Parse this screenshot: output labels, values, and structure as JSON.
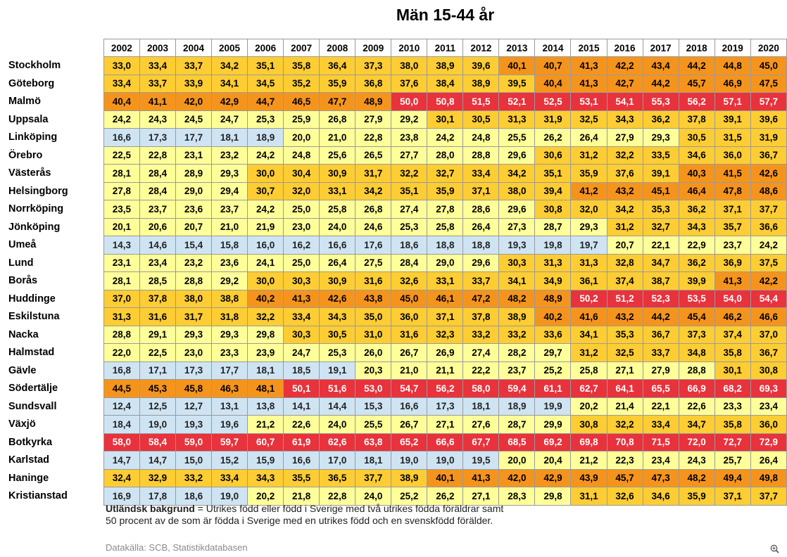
{
  "chart_data": {
    "type": "table",
    "title": "Män 15-44 år",
    "years": [
      "2002",
      "2003",
      "2004",
      "2005",
      "2006",
      "2007",
      "2008",
      "2009",
      "2010",
      "2011",
      "2012",
      "2013",
      "2014",
      "2015",
      "2016",
      "2017",
      "2018",
      "2019",
      "2020"
    ],
    "rows": [
      {
        "city": "Stockholm",
        "values": [
          "33,0",
          "33,4",
          "33,7",
          "34,2",
          "35,1",
          "35,8",
          "36,4",
          "37,3",
          "38,0",
          "38,9",
          "39,6",
          "40,1",
          "40,7",
          "41,3",
          "42,2",
          "43,4",
          "44,2",
          "44,8",
          "45,0"
        ]
      },
      {
        "city": "Göteborg",
        "values": [
          "33,4",
          "33,7",
          "33,9",
          "34,1",
          "34,5",
          "35,2",
          "35,9",
          "36,8",
          "37,6",
          "38,4",
          "38,9",
          "39,5",
          "40,4",
          "41,3",
          "42,7",
          "44,2",
          "45,7",
          "46,9",
          "47,5"
        ]
      },
      {
        "city": "Malmö",
        "values": [
          "40,4",
          "41,1",
          "42,0",
          "42,9",
          "44,7",
          "46,5",
          "47,7",
          "48,9",
          "50,0",
          "50,8",
          "51,5",
          "52,1",
          "52,5",
          "53,1",
          "54,1",
          "55,3",
          "56,2",
          "57,1",
          "57,7"
        ]
      },
      {
        "city": "Uppsala",
        "values": [
          "24,2",
          "24,3",
          "24,5",
          "24,7",
          "25,3",
          "25,9",
          "26,8",
          "27,9",
          "29,2",
          "30,1",
          "30,5",
          "31,3",
          "31,9",
          "32,5",
          "34,3",
          "36,2",
          "37,8",
          "39,1",
          "39,6"
        ]
      },
      {
        "city": "Linköping",
        "values": [
          "16,6",
          "17,3",
          "17,7",
          "18,1",
          "18,9",
          "20,0",
          "21,0",
          "22,8",
          "23,8",
          "24,2",
          "24,8",
          "25,5",
          "26,2",
          "26,4",
          "27,9",
          "29,3",
          "30,5",
          "31,5",
          "31,9"
        ]
      },
      {
        "city": "Örebro",
        "values": [
          "22,5",
          "22,8",
          "23,1",
          "23,2",
          "24,2",
          "24,8",
          "25,6",
          "26,5",
          "27,7",
          "28,0",
          "28,8",
          "29,6",
          "30,6",
          "31,2",
          "32,2",
          "33,5",
          "34,6",
          "36,0",
          "36,7"
        ]
      },
      {
        "city": "Västerås",
        "values": [
          "28,1",
          "28,4",
          "28,9",
          "29,3",
          "30,0",
          "30,4",
          "30,9",
          "31,7",
          "32,2",
          "32,7",
          "33,4",
          "34,2",
          "35,1",
          "35,9",
          "37,6",
          "39,1",
          "40,3",
          "41,5",
          "42,6"
        ]
      },
      {
        "city": "Helsingborg",
        "values": [
          "27,8",
          "28,4",
          "29,0",
          "29,4",
          "30,7",
          "32,0",
          "33,1",
          "34,2",
          "35,1",
          "35,9",
          "37,1",
          "38,0",
          "39,4",
          "41,2",
          "43,2",
          "45,1",
          "46,4",
          "47,8",
          "48,6"
        ]
      },
      {
        "city": "Norrköping",
        "values": [
          "23,5",
          "23,7",
          "23,6",
          "23,7",
          "24,2",
          "25,0",
          "25,8",
          "26,8",
          "27,4",
          "27,8",
          "28,6",
          "29,6",
          "30,8",
          "32,0",
          "34,2",
          "35,3",
          "36,2",
          "37,1",
          "37,7"
        ]
      },
      {
        "city": "Jönköping",
        "values": [
          "20,1",
          "20,6",
          "20,7",
          "21,0",
          "21,9",
          "23,0",
          "24,0",
          "24,6",
          "25,3",
          "25,8",
          "26,4",
          "27,3",
          "28,7",
          "29,3",
          "31,2",
          "32,7",
          "34,3",
          "35,7",
          "36,6"
        ]
      },
      {
        "city": "Umeå",
        "values": [
          "14,3",
          "14,6",
          "15,4",
          "15,8",
          "16,0",
          "16,2",
          "16,6",
          "17,6",
          "18,6",
          "18,8",
          "18,8",
          "19,3",
          "19,8",
          "19,7",
          "20,7",
          "22,1",
          "22,9",
          "23,7",
          "24,2"
        ]
      },
      {
        "city": "Lund",
        "values": [
          "23,1",
          "23,4",
          "23,2",
          "23,6",
          "24,1",
          "25,0",
          "26,4",
          "27,5",
          "28,4",
          "29,0",
          "29,6",
          "30,3",
          "31,3",
          "31,3",
          "32,8",
          "34,7",
          "36,2",
          "36,9",
          "37,5"
        ]
      },
      {
        "city": "Borås",
        "values": [
          "28,1",
          "28,5",
          "28,8",
          "29,2",
          "30,0",
          "30,3",
          "30,9",
          "31,6",
          "32,6",
          "33,1",
          "33,7",
          "34,1",
          "34,9",
          "36,1",
          "37,4",
          "38,7",
          "39,9",
          "41,3",
          "42,2"
        ]
      },
      {
        "city": "Huddinge",
        "values": [
          "37,0",
          "37,8",
          "38,0",
          "38,8",
          "40,2",
          "41,3",
          "42,6",
          "43,8",
          "45,0",
          "46,1",
          "47,2",
          "48,2",
          "48,9",
          "50,2",
          "51,2",
          "52,3",
          "53,5",
          "54,0",
          "54,4"
        ]
      },
      {
        "city": "Eskilstuna",
        "values": [
          "31,3",
          "31,6",
          "31,7",
          "31,8",
          "32,2",
          "33,4",
          "34,3",
          "35,0",
          "36,0",
          "37,1",
          "37,8",
          "38,9",
          "40,2",
          "41,6",
          "43,2",
          "44,2",
          "45,4",
          "46,2",
          "46,6"
        ]
      },
      {
        "city": "Nacka",
        "values": [
          "28,8",
          "29,1",
          "29,3",
          "29,3",
          "29,8",
          "30,3",
          "30,5",
          "31,0",
          "31,6",
          "32,3",
          "33,2",
          "33,2",
          "33,6",
          "34,1",
          "35,3",
          "36,7",
          "37,3",
          "37,4",
          "37,0"
        ]
      },
      {
        "city": "Halmstad",
        "values": [
          "22,0",
          "22,5",
          "23,0",
          "23,3",
          "23,9",
          "24,7",
          "25,3",
          "26,0",
          "26,7",
          "26,9",
          "27,4",
          "28,2",
          "29,7",
          "31,2",
          "32,5",
          "33,7",
          "34,8",
          "35,8",
          "36,7"
        ]
      },
      {
        "city": "Gävle",
        "values": [
          "16,8",
          "17,1",
          "17,3",
          "17,7",
          "18,1",
          "18,5",
          "19,1",
          "20,3",
          "21,0",
          "21,1",
          "22,2",
          "23,7",
          "25,2",
          "25,8",
          "27,1",
          "27,9",
          "28,8",
          "30,1",
          "30,8"
        ]
      },
      {
        "city": "Södertälje",
        "values": [
          "44,5",
          "45,3",
          "45,8",
          "46,3",
          "48,1",
          "50,1",
          "51,6",
          "53,0",
          "54,7",
          "56,2",
          "58,0",
          "59,4",
          "61,1",
          "62,7",
          "64,1",
          "65,5",
          "66,9",
          "68,2",
          "69,3"
        ]
      },
      {
        "city": "Sundsvall",
        "values": [
          "12,4",
          "12,5",
          "12,7",
          "13,1",
          "13,8",
          "14,1",
          "14,4",
          "15,3",
          "16,6",
          "17,3",
          "18,1",
          "18,9",
          "19,9",
          "20,2",
          "21,4",
          "22,1",
          "22,6",
          "23,3",
          "23,4"
        ]
      },
      {
        "city": "Växjö",
        "values": [
          "18,4",
          "19,0",
          "19,3",
          "19,6",
          "21,2",
          "22,6",
          "24,0",
          "25,5",
          "26,7",
          "27,1",
          "27,6",
          "28,7",
          "29,9",
          "30,8",
          "32,2",
          "33,4",
          "34,7",
          "35,8",
          "36,0"
        ]
      },
      {
        "city": "Botkyrka",
        "values": [
          "58,0",
          "58,4",
          "59,0",
          "59,7",
          "60,7",
          "61,9",
          "62,6",
          "63,8",
          "65,2",
          "66,6",
          "67,7",
          "68,5",
          "69,2",
          "69,8",
          "70,8",
          "71,5",
          "72,0",
          "72,7",
          "72,9"
        ]
      },
      {
        "city": "Karlstad",
        "values": [
          "14,7",
          "14,7",
          "15,0",
          "15,2",
          "15,9",
          "16,6",
          "17,0",
          "18,1",
          "19,0",
          "19,0",
          "19,5",
          "20,0",
          "20,4",
          "21,2",
          "22,3",
          "23,4",
          "24,3",
          "25,7",
          "26,4"
        ]
      },
      {
        "city": "Haninge",
        "values": [
          "32,4",
          "32,9",
          "33,2",
          "33,4",
          "34,3",
          "35,5",
          "36,5",
          "37,7",
          "38,9",
          "40,1",
          "41,3",
          "42,0",
          "42,9",
          "43,9",
          "45,7",
          "47,3",
          "48,2",
          "49,4",
          "49,8"
        ]
      },
      {
        "city": "Kristianstad",
        "values": [
          "16,9",
          "17,8",
          "18,6",
          "19,0",
          "20,2",
          "21,8",
          "22,8",
          "24,0",
          "25,2",
          "26,2",
          "27,1",
          "28,3",
          "29,8",
          "31,1",
          "32,6",
          "34,6",
          "35,9",
          "37,1",
          "37,7"
        ]
      }
    ],
    "color_scale": [
      {
        "below": 20,
        "color": "#cfe4f3"
      },
      {
        "below": 30,
        "color": "#ffff99"
      },
      {
        "below": 40,
        "color": "#fdcd33"
      },
      {
        "below": 50,
        "color": "#f5941d"
      },
      {
        "below": 999,
        "color": "#e8323c"
      }
    ]
  },
  "note": {
    "term": "Utländsk bakgrund",
    "line1": " = Utrikes född eller född i Sverige med två utrikes födda föräldrar samt",
    "line2": "50 procent av de som är födda i Sverige med en utrikes född och en svenskfödd förälder."
  },
  "source": "Datakälla: SCB, Statistikdatabasen",
  "icons": {
    "zoom": "zoom-in-icon"
  }
}
